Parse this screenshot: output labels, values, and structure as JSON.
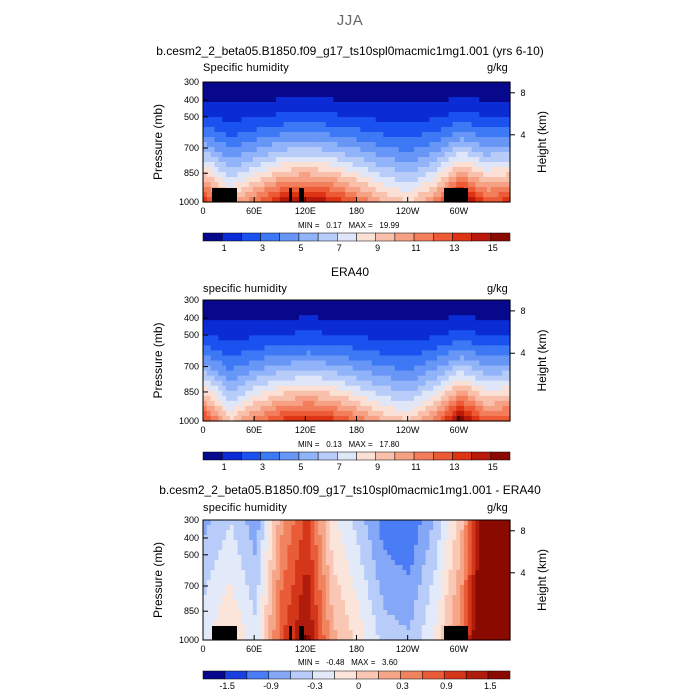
{
  "page": {
    "title": "JJA"
  },
  "chart_data": [
    {
      "type": "heatmap",
      "title": "b.cesm2_2_beta05.B1850.f09_g17_ts10spl0macmic1mg1.001 (yrs 6-10)",
      "variable_label": "Specific humidity",
      "units": "g/kg",
      "ylabel": "Pressure (mb)",
      "ylabel_right": "Height (km)",
      "x_ticks": [
        "0",
        "60E",
        "120E",
        "180",
        "120W",
        "60W"
      ],
      "y_ticks": [
        "300",
        "400",
        "500",
        "700",
        "850",
        "1000"
      ],
      "y2_ticks": [
        "8",
        "4"
      ],
      "min_label": "MIN =",
      "min_value": "0.17",
      "max_label": "MAX =",
      "max_value": "19.99",
      "colorbar_ticks": [
        "1",
        "3",
        "5",
        "7",
        "9",
        "11",
        "13",
        "15"
      ],
      "colorbar_colors": [
        "#08088c",
        "#0b2cd4",
        "#1a52f0",
        "#3d78f5",
        "#6896f7",
        "#91b3f9",
        "#b8ccf9",
        "#dfe6f7",
        "#fbe0d6",
        "#f9c0ac",
        "#f6a084",
        "#f37e5c",
        "#ec5a36",
        "#dd3414",
        "#b8190a",
        "#8b0a00"
      ],
      "series": [
        {
          "x": [
            0,
            30,
            60,
            90,
            120,
            150,
            180,
            210,
            240,
            270,
            300,
            330,
            360
          ],
          "values": [
            13.5,
            11,
            12.5,
            14,
            14.5,
            13.8,
            12.5,
            11.2,
            10.5,
            12,
            15,
            13,
            13.5
          ]
        }
      ]
    },
    {
      "type": "heatmap",
      "title": "ERA40",
      "variable_label": "specific humidity",
      "units": "g/kg",
      "ylabel": "Pressure (mb)",
      "ylabel_right": "Height (km)",
      "x_ticks": [
        "0",
        "60E",
        "120E",
        "180",
        "120W",
        "60W"
      ],
      "y_ticks": [
        "300",
        "400",
        "500",
        "700",
        "850",
        "1000"
      ],
      "y2_ticks": [
        "8",
        "4"
      ],
      "min_label": "MIN =",
      "min_value": "0.13",
      "max_label": "MAX =",
      "max_value": "17.80",
      "colorbar_ticks": [
        "1",
        "3",
        "5",
        "7",
        "9",
        "11",
        "13",
        "15"
      ],
      "colorbar_colors": [
        "#08088c",
        "#0b2cd4",
        "#1a52f0",
        "#3d78f5",
        "#6896f7",
        "#91b3f9",
        "#b8ccf9",
        "#dfe6f7",
        "#fbe0d6",
        "#f9c0ac",
        "#f6a084",
        "#f37e5c",
        "#ec5a36",
        "#dd3414",
        "#b8190a",
        "#8b0a00"
      ],
      "series": [
        {
          "x": [
            0,
            30,
            60,
            90,
            120,
            150,
            180,
            210,
            240,
            270,
            300,
            330,
            360
          ],
          "values": [
            12.5,
            10,
            11.5,
            12.5,
            13,
            12.5,
            11.5,
            10.5,
            10,
            11.5,
            14,
            12,
            12.5
          ]
        }
      ]
    },
    {
      "type": "heatmap",
      "title": "b.cesm2_2_beta05.B1850.f09_g17_ts10spl0macmic1mg1.001 - ERA40",
      "variable_label": "specific humidity",
      "units": "g/kg",
      "ylabel": "Pressure (mb)",
      "ylabel_right": "Height (km)",
      "x_ticks": [
        "0",
        "60E",
        "120E",
        "180",
        "120W",
        "60W"
      ],
      "y_ticks": [
        "300",
        "400",
        "500",
        "700",
        "850",
        "1000"
      ],
      "y2_ticks": [
        "8",
        "4"
      ],
      "min_label": "MIN =",
      "min_value": "-0.48",
      "max_label": "MAX =",
      "max_value": "3.60",
      "colorbar_ticks": [
        "-1.5",
        "-0.9",
        "-0.3",
        "0",
        "0.3",
        "0.9",
        "1.5"
      ],
      "colorbar_colors": [
        "#08088c",
        "#1a3fe0",
        "#4a7cf5",
        "#84a8f7",
        "#b8ccf9",
        "#e2e9f8",
        "#fbe4da",
        "#f9c7b3",
        "#f6a688",
        "#f1835f",
        "#e95c37",
        "#d4361a",
        "#b01c0c",
        "#8b0a00"
      ],
      "series": [
        {
          "x": [
            0,
            30,
            60,
            90,
            120,
            150,
            180,
            210,
            240,
            270,
            300,
            330,
            360
          ],
          "values": [
            0.6,
            0.9,
            0.5,
            1.8,
            2.4,
            1.2,
            0.8,
            0.3,
            0.2,
            0.7,
            1.5,
            3.2,
            2.8
          ]
        }
      ]
    }
  ]
}
